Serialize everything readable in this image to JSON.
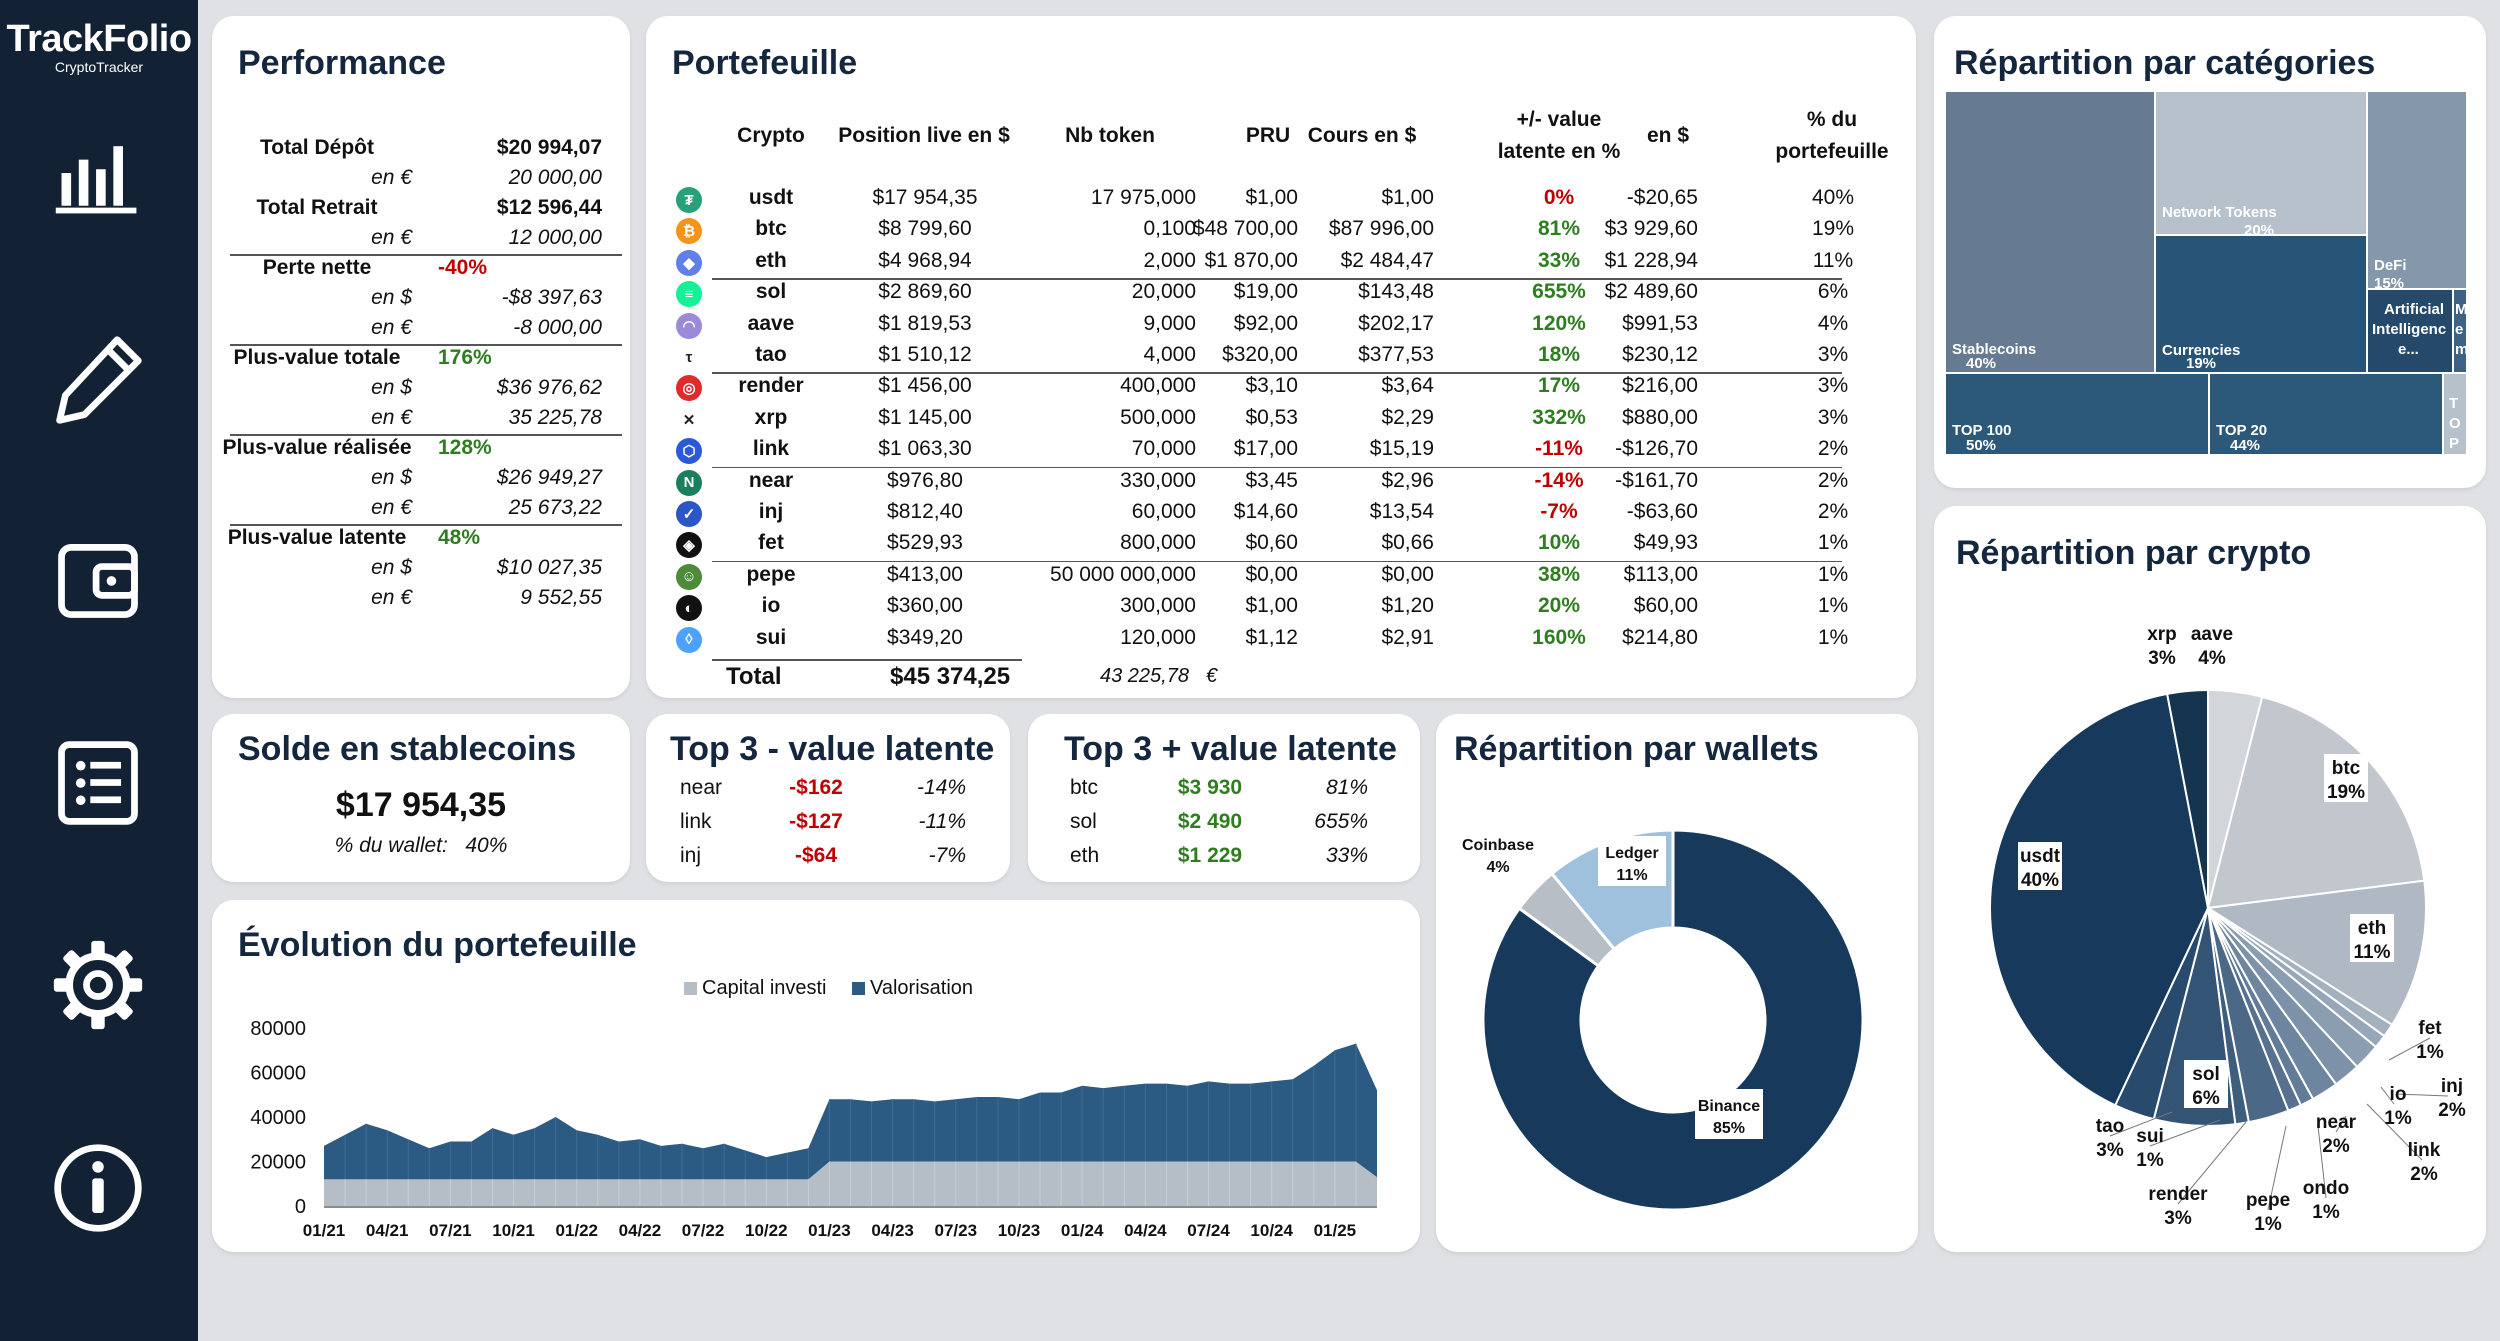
{
  "brand": {
    "logo_main": "TrackFolio",
    "logo_sub": "CryptoTracker",
    "accent": "#3db24a"
  },
  "nav": [
    {
      "name": "dashboard-icon"
    },
    {
      "name": "edit-icon"
    },
    {
      "name": "wallet-icon"
    },
    {
      "name": "list-icon"
    },
    {
      "name": "gear-icon"
    },
    {
      "name": "info-icon"
    }
  ],
  "performance": {
    "title": "Performance",
    "rows": [
      {
        "label": "Total Dépôt",
        "value": "$20 994,07",
        "style": "b"
      },
      {
        "label": "en €",
        "value": "20 000,00",
        "style": "i"
      },
      {
        "label": "Total Retrait",
        "value": "$12 596,44",
        "style": "b"
      },
      {
        "label": "en €",
        "value": "12 000,00",
        "style": "i"
      },
      {
        "label": "Perte nette",
        "value": "-40%",
        "style": "b",
        "color": "red"
      },
      {
        "label": "en $",
        "value": "-$8 397,63",
        "style": "i"
      },
      {
        "label": "en €",
        "value": "-8 000,00",
        "style": "i"
      },
      {
        "label": "Plus-value totale",
        "value": "176%",
        "style": "b",
        "color": "green"
      },
      {
        "label": "en $",
        "value": "$36 976,62",
        "style": "i"
      },
      {
        "label": "en €",
        "value": "35 225,78",
        "style": "i"
      },
      {
        "label": "Plus-value réalisée",
        "value": "128%",
        "style": "b",
        "color": "green"
      },
      {
        "label": "en $",
        "value": "$26 949,27",
        "style": "i"
      },
      {
        "label": "en €",
        "value": "25 673,22",
        "style": "i"
      },
      {
        "label": "Plus-value latente",
        "value": "48%",
        "style": "b",
        "color": "green"
      },
      {
        "label": "en $",
        "value": "$10 027,35",
        "style": "i"
      },
      {
        "label": "en €",
        "value": "9 552,55",
        "style": "i"
      }
    ]
  },
  "portfolio": {
    "title": "Portefeuille",
    "headers": [
      "Crypto",
      "Position live en $",
      "Nb token",
      "PRU",
      "Cours en $",
      "+/- value latente en %",
      "en $",
      "% du portefeuille"
    ],
    "rows": [
      {
        "icon": "usdt-icon",
        "color": "#26a17b",
        "crypto": "usdt",
        "position": "$17 954,35",
        "nb": "17 975,000",
        "pru": "$1,00",
        "cours": "$1,00",
        "pct": "0%",
        "pct_color": "red",
        "usd": "-$20,65",
        "share": "40%"
      },
      {
        "icon": "btc-icon",
        "color": "#f7931a",
        "crypto": "btc",
        "position": "$8 799,60",
        "nb": "0,100",
        "pru": "$48 700,00",
        "cours": "$87 996,00",
        "pct": "81%",
        "pct_color": "green",
        "usd": "$3 929,60",
        "share": "19%"
      },
      {
        "icon": "eth-icon",
        "color": "#627eea",
        "crypto": "eth",
        "position": "$4 968,94",
        "nb": "2,000",
        "pru": "$1 870,00",
        "cours": "$2 484,47",
        "pct": "33%",
        "pct_color": "green",
        "usd": "$1 228,94",
        "share": "11%"
      },
      {
        "icon": "sol-icon",
        "color": "#14f195",
        "crypto": "sol",
        "position": "$2 869,60",
        "nb": "20,000",
        "pru": "$19,00",
        "cours": "$143,48",
        "pct": "655%",
        "pct_color": "green",
        "usd": "$2 489,60",
        "share": "6%"
      },
      {
        "icon": "aave-icon",
        "color": "#9a8ad9",
        "crypto": "aave",
        "position": "$1 819,53",
        "nb": "9,000",
        "pru": "$92,00",
        "cours": "$202,17",
        "pct": "120%",
        "pct_color": "green",
        "usd": "$991,53",
        "share": "4%"
      },
      {
        "icon": "tao-icon",
        "color": "#ffffff",
        "crypto": "tao",
        "position": "$1 510,12",
        "nb": "4,000",
        "pru": "$320,00",
        "cours": "$377,53",
        "pct": "18%",
        "pct_color": "green",
        "usd": "$230,12",
        "share": "3%"
      },
      {
        "icon": "render-icon",
        "color": "#e12b2b",
        "crypto": "render",
        "position": "$1 456,00",
        "nb": "400,000",
        "pru": "$3,10",
        "cours": "$3,64",
        "pct": "17%",
        "pct_color": "green",
        "usd": "$216,00",
        "share": "3%"
      },
      {
        "icon": "xrp-icon",
        "color": "#ffffff",
        "crypto": "xrp",
        "position": "$1 145,00",
        "nb": "500,000",
        "pru": "$0,53",
        "cours": "$2,29",
        "pct": "332%",
        "pct_color": "green",
        "usd": "$880,00",
        "share": "3%"
      },
      {
        "icon": "link-icon",
        "color": "#2a5ada",
        "crypto": "link",
        "position": "$1 063,30",
        "nb": "70,000",
        "pru": "$17,00",
        "cours": "$15,19",
        "pct": "-11%",
        "pct_color": "red",
        "usd": "-$126,70",
        "share": "2%"
      },
      {
        "icon": "near-icon",
        "color": "#1a7f5a",
        "crypto": "near",
        "position": "$976,80",
        "nb": "330,000",
        "pru": "$3,45",
        "cours": "$2,96",
        "pct": "-14%",
        "pct_color": "red",
        "usd": "-$161,70",
        "share": "2%"
      },
      {
        "icon": "inj-icon",
        "color": "#2a56c6",
        "crypto": "inj",
        "position": "$812,40",
        "nb": "60,000",
        "pru": "$14,60",
        "cours": "$13,54",
        "pct": "-7%",
        "pct_color": "red",
        "usd": "-$63,60",
        "share": "2%"
      },
      {
        "icon": "fet-icon",
        "color": "#111111",
        "crypto": "fet",
        "position": "$529,93",
        "nb": "800,000",
        "pru": "$0,60",
        "cours": "$0,66",
        "pct": "10%",
        "pct_color": "green",
        "usd": "$49,93",
        "share": "1%"
      },
      {
        "icon": "pepe-icon",
        "color": "#4d8a3a",
        "crypto": "pepe",
        "position": "$413,00",
        "nb": "50 000 000,000",
        "pru": "$0,00",
        "cours": "$0,00",
        "pct": "38%",
        "pct_color": "green",
        "usd": "$113,00",
        "share": "1%"
      },
      {
        "icon": "io-icon",
        "color": "#111111",
        "crypto": "io",
        "position": "$360,00",
        "nb": "300,000",
        "pru": "$1,00",
        "cours": "$1,20",
        "pct": "20%",
        "pct_color": "green",
        "usd": "$60,00",
        "share": "1%"
      },
      {
        "icon": "sui-icon",
        "color": "#4da2ff",
        "crypto": "sui",
        "position": "$349,20",
        "nb": "120,000",
        "pru": "$1,12",
        "cours": "$2,91",
        "pct": "160%",
        "pct_color": "green",
        "usd": "$214,80",
        "share": "1%"
      }
    ],
    "total_label": "Total",
    "total_usd": "$45 374,25",
    "total_eur": "43 225,78",
    "total_eur_unit": "€"
  },
  "stable": {
    "title": "Solde en stablecoins",
    "amount": "$17 954,35",
    "share_label": "% du wallet:",
    "share": "40%"
  },
  "top_minus": {
    "title": "Top 3 - value latente",
    "rows": [
      {
        "name": "near",
        "value": "-$162",
        "pct": "-14%"
      },
      {
        "name": "link",
        "value": "-$127",
        "pct": "-11%"
      },
      {
        "name": "inj",
        "value": "-$64",
        "pct": "-7%"
      }
    ]
  },
  "top_plus": {
    "title": "Top 3 + value latente",
    "rows": [
      {
        "name": "btc",
        "value": "$3 930",
        "pct": "81%"
      },
      {
        "name": "sol",
        "value": "$2 490",
        "pct": "655%"
      },
      {
        "name": "eth",
        "value": "$1 229",
        "pct": "33%"
      }
    ]
  },
  "evolution": {
    "title": "Évolution du portefeuille"
  },
  "wallets": {
    "title": "Répartition par wallets"
  },
  "categories": {
    "title": "Répartition par catégories"
  },
  "crypto_split": {
    "title": "Répartition par crypto"
  },
  "chart_data": [
    {
      "type": "area",
      "title": "Évolution du portefeuille",
      "series": [
        {
          "name": "Capital investi",
          "color": "#b5bdc7",
          "values": [
            12000,
            12000,
            12000,
            12000,
            12000,
            12000,
            12000,
            12000,
            12000,
            12000,
            12000,
            12000,
            12000,
            12000,
            12000,
            12000,
            12000,
            12000,
            12000,
            12000,
            12000,
            12000,
            12000,
            12000,
            20000,
            20000,
            20000,
            20000,
            20000,
            20000,
            20000,
            20000,
            20000,
            20000,
            20000,
            20000,
            20000,
            20000,
            20000,
            20000,
            20000,
            20000,
            20000,
            20000,
            20000,
            20000,
            20000,
            20000,
            20000,
            20000,
            13000
          ]
        },
        {
          "name": "Valorisation",
          "color": "#2b5a83",
          "values": [
            27000,
            32000,
            37000,
            34000,
            30000,
            26000,
            29000,
            29000,
            35000,
            32000,
            35000,
            40000,
            34000,
            32000,
            29000,
            30000,
            27000,
            28000,
            26000,
            28000,
            25000,
            22000,
            24000,
            26000,
            48000,
            48000,
            47000,
            48000,
            48000,
            47000,
            48000,
            49000,
            49000,
            48000,
            51000,
            51000,
            54000,
            53000,
            54000,
            55000,
            55000,
            54000,
            56000,
            55000,
            55000,
            56000,
            57000,
            63000,
            70000,
            73000,
            52000
          ]
        }
      ],
      "x_ticks": [
        "01/21",
        "04/21",
        "07/21",
        "10/21",
        "01/22",
        "04/22",
        "07/22",
        "10/22",
        "01/23",
        "04/23",
        "07/23",
        "10/23",
        "01/24",
        "04/24",
        "07/24",
        "10/24",
        "01/25"
      ],
      "y_ticks": [
        "80000",
        "60000",
        "40000",
        "20000",
        "0"
      ],
      "ylim": [
        0,
        80000
      ]
    },
    {
      "type": "pie",
      "title": "Répartition par wallets",
      "variant": "donut",
      "slices": [
        {
          "label": "Binance",
          "pct_label": "85%",
          "value": 85,
          "color": "#173a5c"
        },
        {
          "label": "Coinbase",
          "pct_label": "4%",
          "value": 4,
          "color": "#b8bec6"
        },
        {
          "label": "Ledger",
          "pct_label": "11%",
          "value": 11,
          "color": "#9fc1dd"
        }
      ]
    },
    {
      "type": "treemap",
      "title": "Répartition par catégories",
      "items": [
        {
          "label": "Stablecoins",
          "pct": "40%"
        },
        {
          "label": "Network Tokens",
          "pct": "20%"
        },
        {
          "label": "Currencies",
          "pct": "19%"
        },
        {
          "label": "DeFi",
          "pct": "15%"
        },
        {
          "label": "Artificial Intelligence",
          "pct": ""
        },
        {
          "label": "TOP 100",
          "pct": "50%"
        },
        {
          "label": "TOP 20",
          "pct": "44%"
        }
      ],
      "visible_labels": {
        "stablecoins": "Stablecoins",
        "stablecoins_pct": "40%",
        "network": "Network Tokens",
        "network_pct": "20%",
        "currencies": "Currencies",
        "currencies_pct": "19%",
        "defi": "DeFi",
        "defi_pct": "15%",
        "ai_1": "Artificial",
        "ai_2": "Intelligenc",
        "ai_3": "e...",
        "m": "M",
        "e": "e",
        "m2": "m",
        "top100": "TOP 100",
        "top100_pct": "50%",
        "top20": "TOP 20",
        "top20_pct": "44%",
        "t": "T",
        "o": "O",
        "p": "P",
        "ell": "..."
      }
    },
    {
      "type": "pie",
      "title": "Répartition par crypto",
      "slices": [
        {
          "label": "usdt",
          "value": 40,
          "pct_label": "40%"
        },
        {
          "label": "btc",
          "value": 19,
          "pct_label": "19%"
        },
        {
          "label": "eth",
          "value": 11,
          "pct_label": "11%"
        },
        {
          "label": "fet",
          "value": 1,
          "pct_label": "1%"
        },
        {
          "label": "io",
          "value": 1,
          "pct_label": "1%"
        },
        {
          "label": "inj",
          "value": 2,
          "pct_label": "2%"
        },
        {
          "label": "link",
          "value": 2,
          "pct_label": "2%"
        },
        {
          "label": "near",
          "value": 2,
          "pct_label": "2%"
        },
        {
          "label": "ondo",
          "value": 1,
          "pct_label": "1%"
        },
        {
          "label": "pepe",
          "value": 1,
          "pct_label": "1%"
        },
        {
          "label": "render",
          "value": 3,
          "pct_label": "3%"
        },
        {
          "label": "sui",
          "value": 1,
          "pct_label": "1%"
        },
        {
          "label": "sol",
          "value": 6,
          "pct_label": "6%"
        },
        {
          "label": "tao",
          "value": 3,
          "pct_label": "3%"
        },
        {
          "label": "xrp",
          "value": 3,
          "pct_label": "3%"
        },
        {
          "label": "aave",
          "value": 4,
          "pct_label": "4%"
        }
      ]
    }
  ]
}
